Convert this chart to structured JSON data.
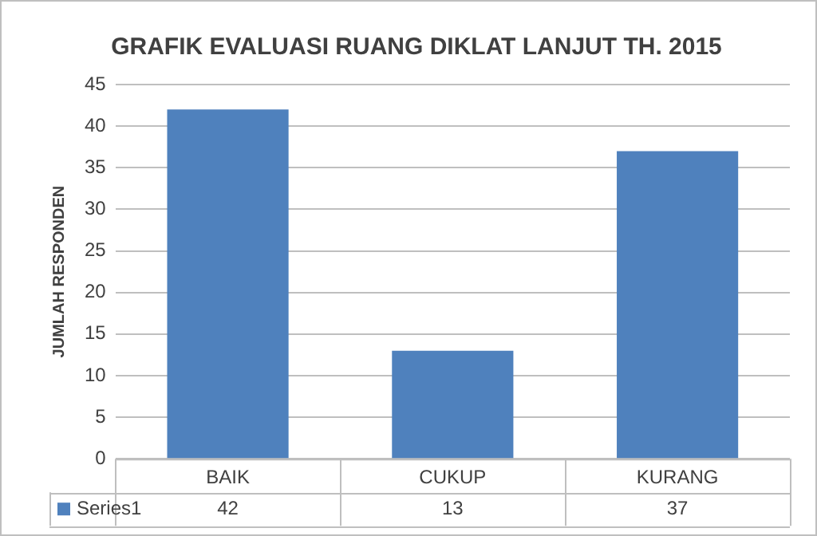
{
  "chart_data": {
    "type": "bar",
    "title": "GRAFIK EVALUASI RUANG DIKLAT LANJUT TH. 2015",
    "ylabel": "JUMLAH RESPONDEN",
    "categories": [
      "BAIK",
      "CUKUP",
      "KURANG"
    ],
    "series": [
      {
        "name": "Series1",
        "color": "#4f81bd",
        "values": [
          42,
          13,
          37
        ]
      }
    ],
    "ylim": [
      0,
      45
    ],
    "yticks": [
      0,
      5,
      10,
      15,
      20,
      25,
      30,
      35,
      40,
      45
    ],
    "grid": "y",
    "legend": "bottom",
    "data_labels": true
  }
}
